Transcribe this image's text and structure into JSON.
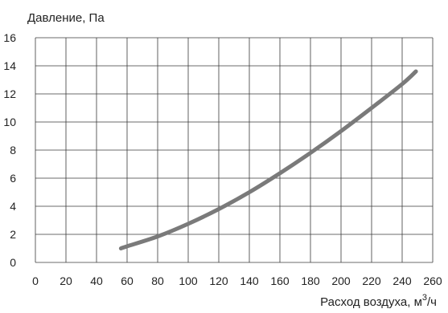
{
  "chart_data": {
    "type": "line",
    "title": "",
    "ylabel": "Давление, Па",
    "xlabel_base": "Расход воздуха, м",
    "xlabel_sup": "3",
    "xlabel_tail": "/ч",
    "xlim": [
      0,
      260
    ],
    "ylim": [
      0,
      16
    ],
    "x_ticks": [
      0,
      20,
      40,
      60,
      80,
      100,
      120,
      140,
      160,
      180,
      200,
      220,
      240,
      260
    ],
    "y_ticks": [
      0,
      2,
      4,
      6,
      8,
      10,
      12,
      14,
      16
    ],
    "grid": true,
    "series": [
      {
        "color": "#7a7a7a",
        "x": [
          56,
          60,
          80,
          100,
          120,
          140,
          160,
          180,
          200,
          220,
          240,
          249
        ],
        "y": [
          1.0,
          1.15,
          1.85,
          2.75,
          3.8,
          5.0,
          6.35,
          7.8,
          9.35,
          11.0,
          12.7,
          13.6
        ]
      }
    ]
  },
  "colors": {
    "grid": "#3a3a3a",
    "axis_text": "#222222"
  }
}
